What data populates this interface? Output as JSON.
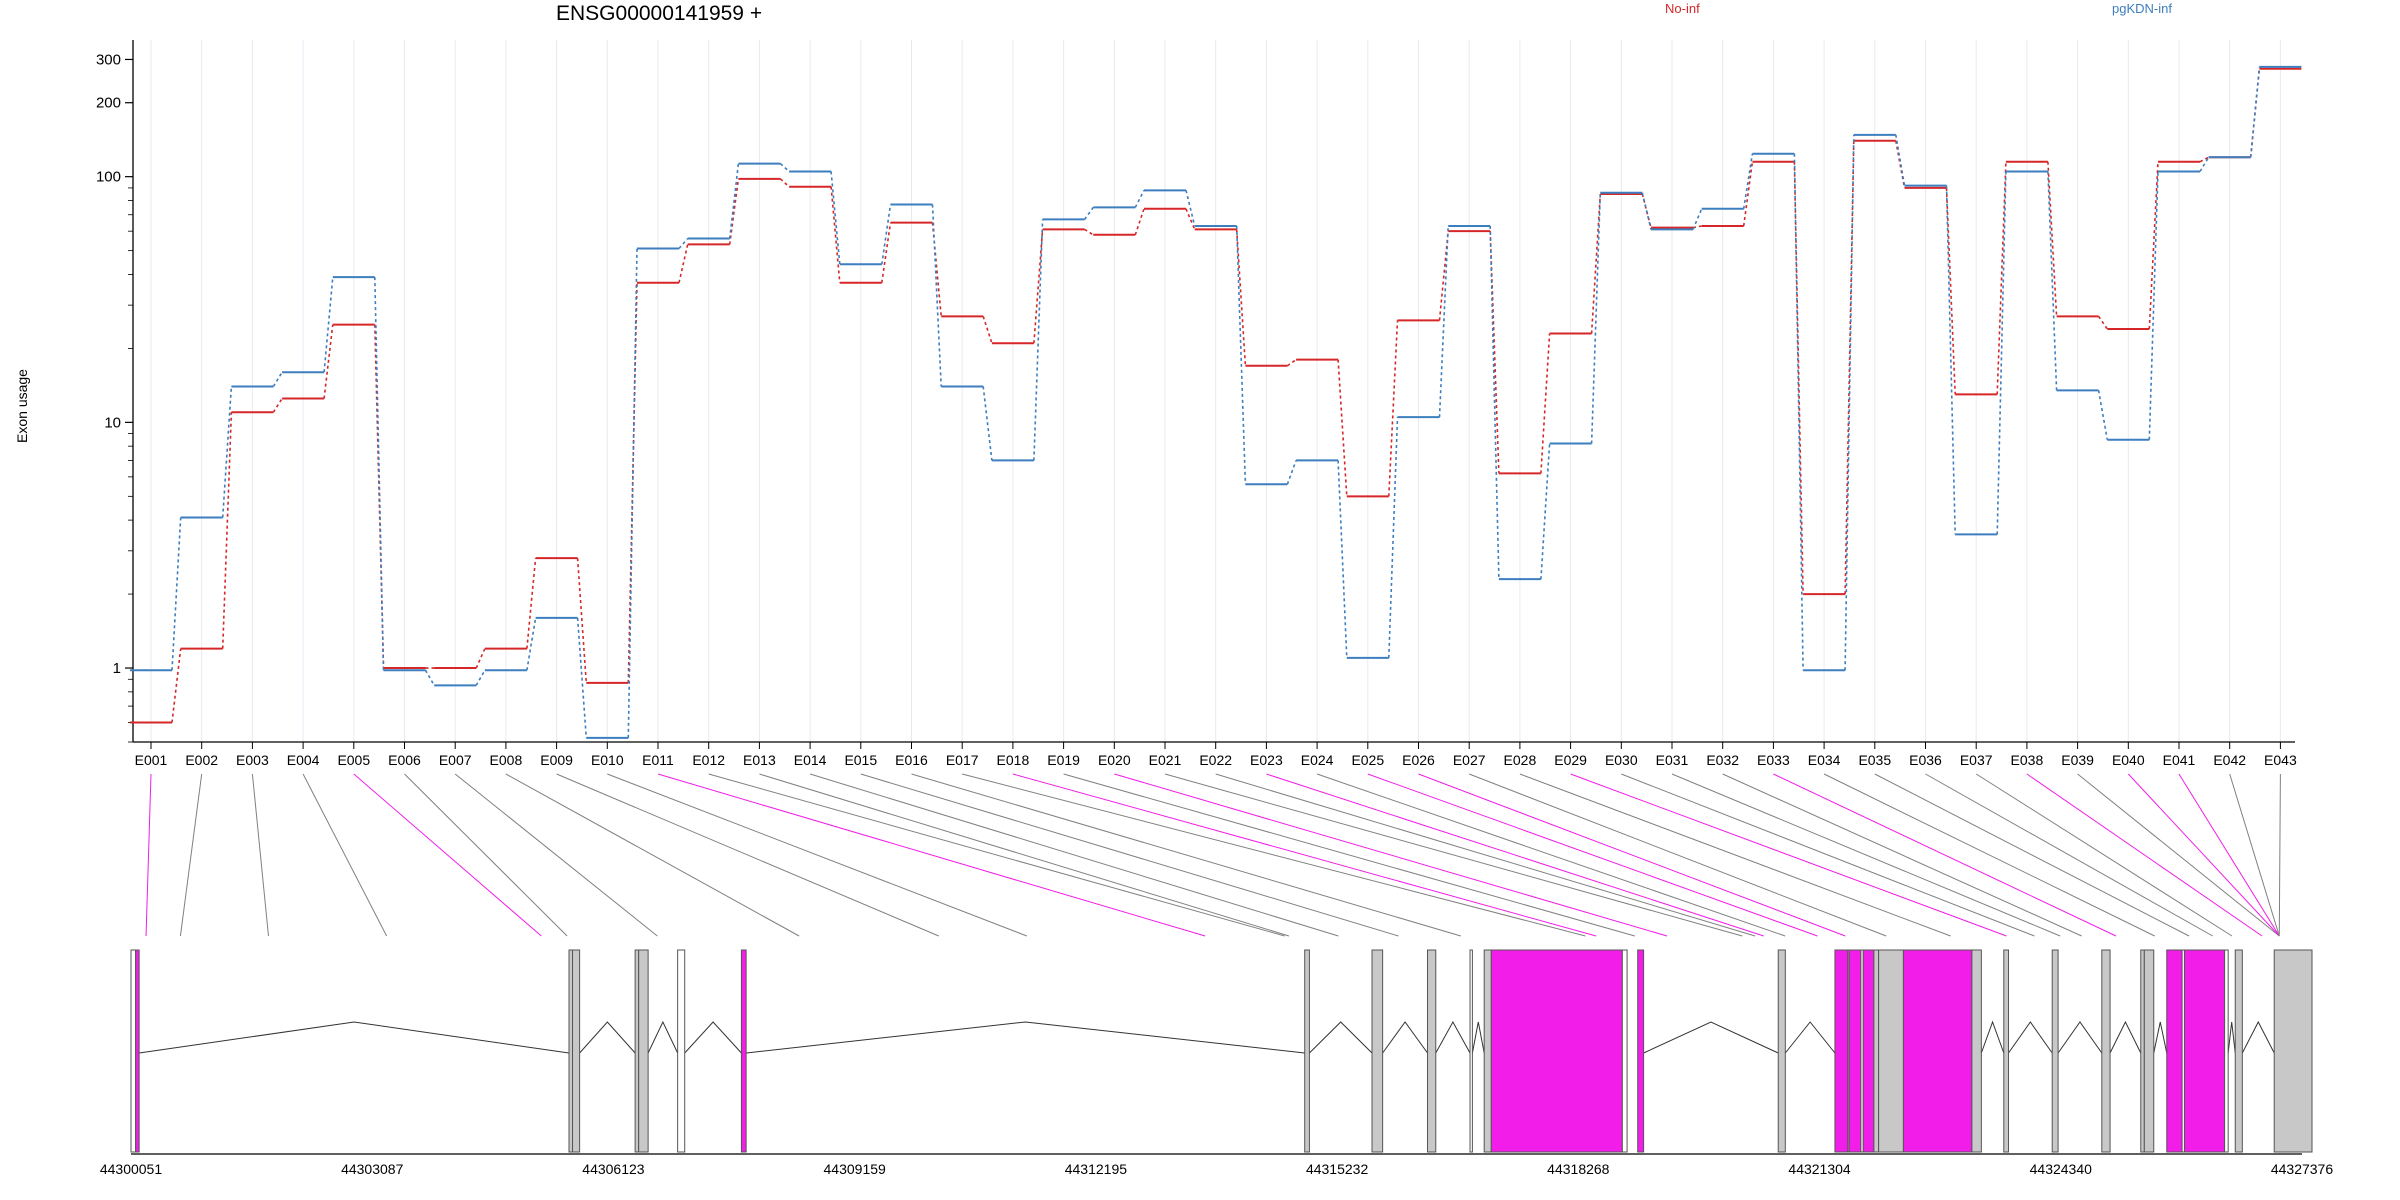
{
  "chart_data": {
    "type": "line",
    "title": "ENSG00000141959 +",
    "ylabel": "Exon usage",
    "y_scale": "log",
    "yticks": [
      1,
      10,
      100,
      200,
      300
    ],
    "ytick_labels": [
      "1",
      "10",
      "100",
      "200",
      "300"
    ],
    "ylim": [
      0.5,
      360
    ],
    "legend_position": "top-right",
    "categories": [
      "E001",
      "E002",
      "E003",
      "E004",
      "E005",
      "E006",
      "E007",
      "E008",
      "E009",
      "E010",
      "E011",
      "E012",
      "E013",
      "E014",
      "E015",
      "E016",
      "E017",
      "E018",
      "E019",
      "E020",
      "E021",
      "E022",
      "E023",
      "E024",
      "E025",
      "E026",
      "E027",
      "E028",
      "E029",
      "E030",
      "E031",
      "E032",
      "E033",
      "E034",
      "E035",
      "E036",
      "E037",
      "E038",
      "E039",
      "E040",
      "E041",
      "E042",
      "E043"
    ],
    "series": [
      {
        "name": "No-inf",
        "color": "#d62728",
        "values": [
          0.6,
          1.2,
          11,
          12.5,
          25,
          1.0,
          1.0,
          1.2,
          2.8,
          0.87,
          37,
          53,
          98,
          91,
          37,
          65,
          27,
          21,
          61,
          58,
          74,
          61,
          17,
          18,
          5.0,
          26,
          60,
          6.2,
          23,
          85,
          62,
          63,
          115,
          2.0,
          140,
          90,
          13,
          115,
          27,
          24,
          115,
          120,
          275
        ]
      },
      {
        "name": "pgKDN-inf",
        "color": "#3d7ebf",
        "values": [
          0.98,
          4.1,
          14,
          16,
          39,
          0.98,
          0.85,
          0.98,
          1.6,
          0.52,
          51,
          56,
          113,
          105,
          44,
          77,
          14,
          7.0,
          67,
          75,
          88,
          63,
          5.6,
          7.0,
          1.1,
          10.5,
          63,
          2.3,
          8.2,
          86,
          61,
          74,
          124,
          0.98,
          148,
          92,
          3.5,
          105,
          13.5,
          8.5,
          105,
          120,
          280
        ]
      }
    ],
    "genomic_ticks": [
      "44300051",
      "44303087",
      "44306123",
      "44309159",
      "44312195",
      "44315232",
      "44318268",
      "44321304",
      "44324340",
      "44327376"
    ],
    "genome_start": 44300051,
    "genome_end": 44327376,
    "significant_exons": [
      "E001",
      "E005",
      "E011",
      "E018",
      "E020",
      "E023",
      "E025",
      "E026",
      "E029",
      "E033",
      "E038",
      "E040",
      "E041"
    ],
    "connector_color": "#808080",
    "highlight_color": "#f21de8",
    "exon_fill": "#c8c8c8"
  }
}
